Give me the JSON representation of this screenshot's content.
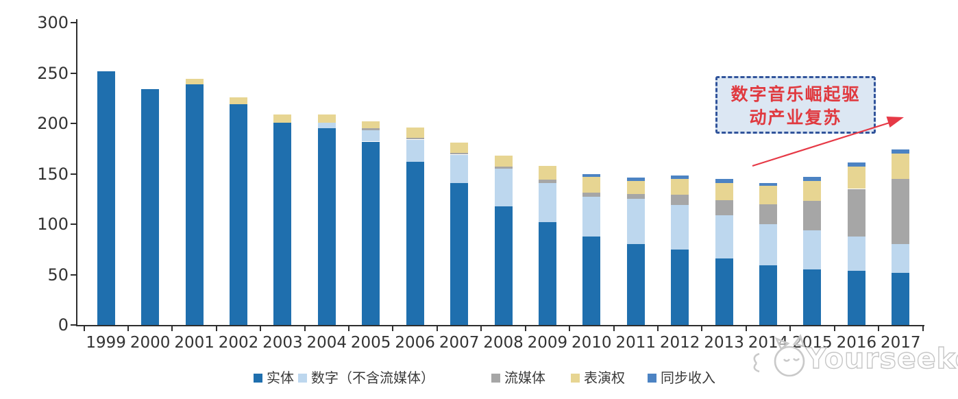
{
  "chart_data": {
    "type": "bar",
    "stacked": true,
    "title": "",
    "xlabel": "",
    "ylabel": "",
    "ylim": [
      0,
      300
    ],
    "yticks": [
      0,
      50,
      100,
      150,
      200,
      250,
      300
    ],
    "grid": false,
    "legend_position": "bottom",
    "categories": [
      "1999",
      "2000",
      "2001",
      "2002",
      "2003",
      "2004",
      "2005",
      "2006",
      "2007",
      "2008",
      "2009",
      "2010",
      "2011",
      "2012",
      "2013",
      "2014",
      "2015",
      "2016",
      "2017"
    ],
    "series": [
      {
        "name": "实体",
        "color": "#1f6fae",
        "values": [
          252,
          234,
          239,
          219,
          201,
          195,
          182,
          162,
          141,
          118,
          102,
          88,
          80,
          75,
          66,
          59,
          55,
          54,
          52
        ]
      },
      {
        "name": "数字（不含流媒体）",
        "color": "#bdd7ee",
        "values": [
          0,
          0,
          0,
          0,
          0,
          6,
          11,
          22,
          28,
          37,
          39,
          39,
          45,
          44,
          43,
          41,
          39,
          34,
          28
        ]
      },
      {
        "name": "流媒体",
        "color": "#a6a6a6",
        "values": [
          0,
          0,
          0,
          0,
          0,
          0,
          2,
          2,
          2,
          2,
          3,
          4,
          5,
          10,
          15,
          20,
          29,
          47,
          65
        ]
      },
      {
        "name": "表演权",
        "color": "#e7d592",
        "values": [
          0,
          0,
          5,
          7,
          8,
          8,
          7,
          10,
          10,
          11,
          14,
          16,
          13,
          16,
          17,
          18,
          20,
          22,
          25
        ]
      },
      {
        "name": "同步收入",
        "color": "#4c83c3",
        "values": [
          0,
          0,
          0,
          0,
          0,
          0,
          0,
          0,
          0,
          0,
          0,
          3,
          3,
          3,
          4,
          3,
          4,
          4,
          4
        ]
      }
    ]
  },
  "annotation": {
    "line1": "数字音乐崛起驱",
    "line2": "动产业复苏",
    "text_color": "#e0393f",
    "box_fill": "#dce7f3",
    "box_border": "#31549b",
    "arrow_color": "#e63946"
  },
  "watermark": {
    "text": "Yourseeker",
    "logo": "cat-logo"
  }
}
